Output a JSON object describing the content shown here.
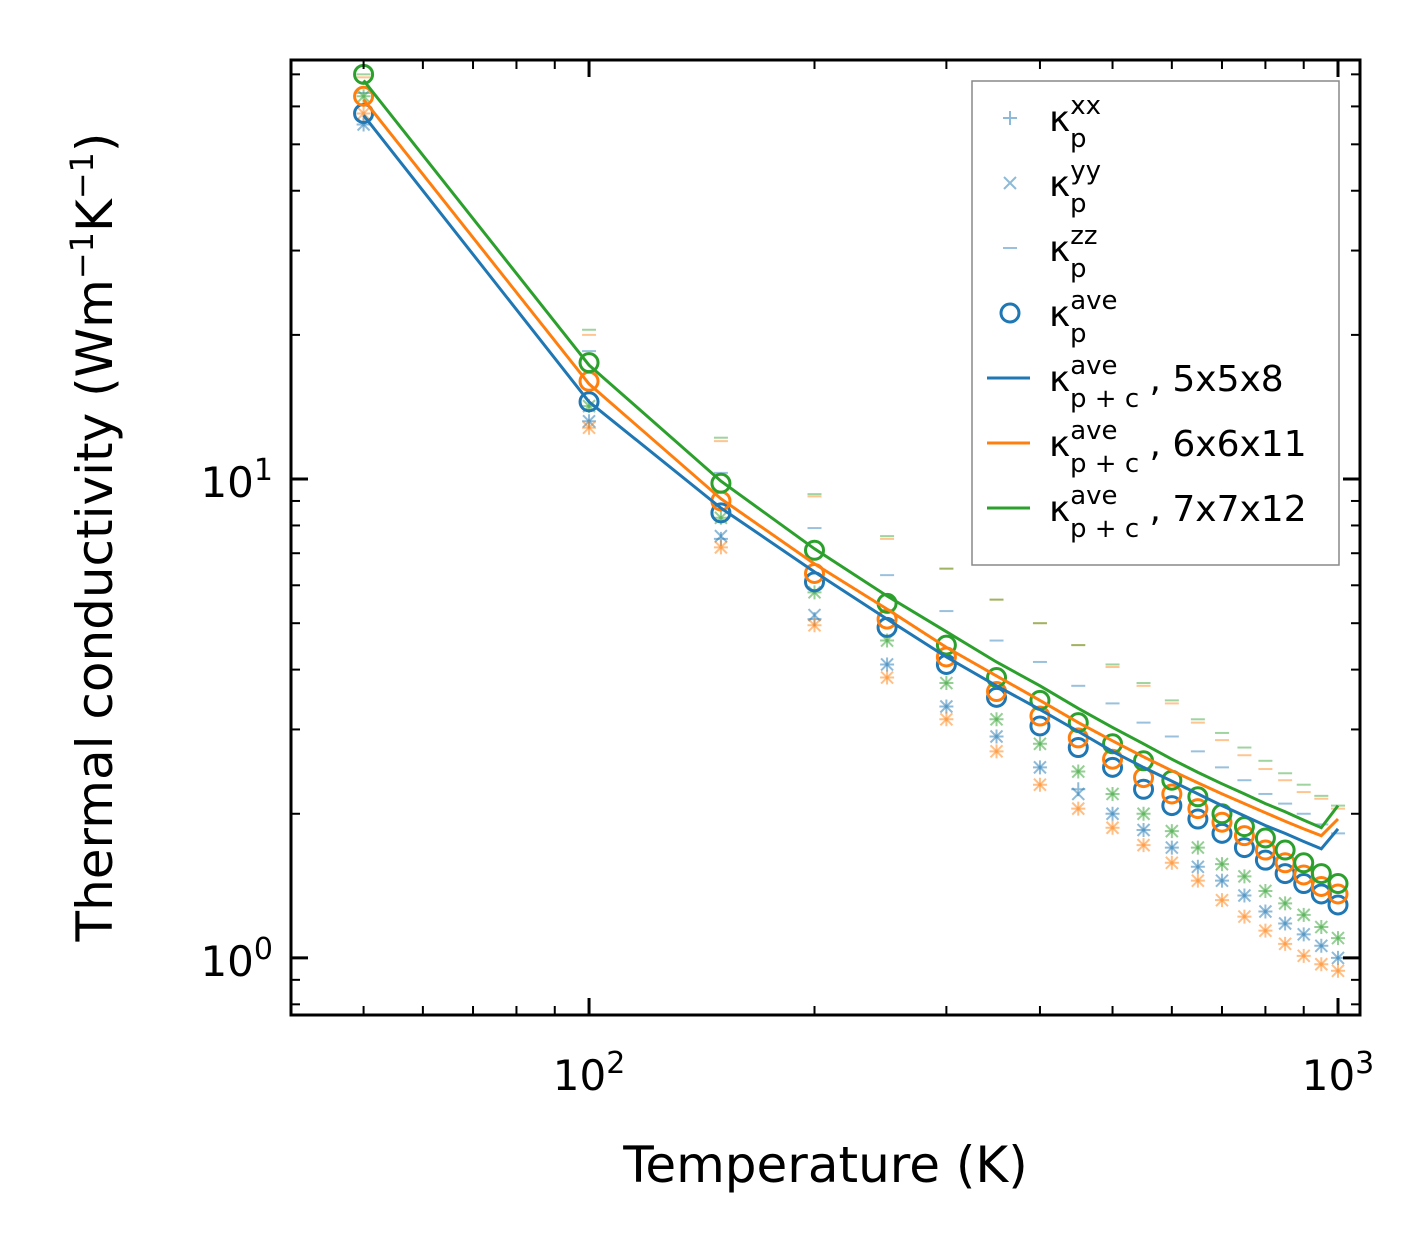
{
  "chart_data": {
    "type": "scatter",
    "xscale": "log",
    "yscale": "log",
    "xlim": [
      40,
      1070
    ],
    "ylim": [
      0.76,
      75
    ],
    "xlabel": "Temperature (K)",
    "ylabel": {
      "main": "Thermal conductivity (Wm",
      "exp1": "−1",
      "mid": "K",
      "exp2": "−1",
      "end": ")"
    },
    "xticks": [
      {
        "value": 100,
        "base": "10",
        "exp": "2"
      },
      {
        "value": 1000,
        "base": "10",
        "exp": "3"
      }
    ],
    "yticks": [
      {
        "value": 1,
        "base": "10",
        "exp": "0"
      },
      {
        "value": 10,
        "base": "10",
        "exp": "1"
      }
    ],
    "temperatures": [
      50,
      100,
      150,
      200,
      250,
      300,
      350,
      400,
      450,
      500,
      550,
      600,
      650,
      700,
      750,
      800,
      850,
      900,
      950,
      1000
    ],
    "colors": {
      "blue": "#1f77b4",
      "orange": "#ff7f0e",
      "green": "#2ca02c"
    },
    "series": [
      {
        "name": "5x5x8",
        "color": "#1f77b4",
        "kxx": [
          55,
          13.2,
          7.5,
          5.1,
          4.1,
          3.35,
          2.9,
          2.5,
          2.25,
          2.0,
          1.85,
          1.7,
          1.55,
          1.45,
          1.35,
          1.25,
          1.18,
          1.12,
          1.06,
          1.0
        ],
        "kyy": [
          55,
          13.2,
          7.6,
          5.2,
          4.1,
          3.35,
          2.9,
          2.5,
          2.2,
          2.0,
          1.85,
          1.7,
          1.55,
          1.45,
          1.35,
          1.25,
          1.18,
          1.12,
          1.06,
          1.0
        ],
        "kzz": [
          64,
          18.5,
          10.3,
          7.9,
          6.3,
          5.3,
          4.6,
          4.15,
          3.7,
          3.4,
          3.1,
          2.9,
          2.7,
          2.5,
          2.35,
          2.2,
          2.1,
          2.0,
          1.9,
          1.82
        ],
        "kave": [
          58,
          14.5,
          8.5,
          6.1,
          4.9,
          4.1,
          3.5,
          3.05,
          2.75,
          2.5,
          2.25,
          2.08,
          1.95,
          1.82,
          1.7,
          1.6,
          1.5,
          1.43,
          1.36,
          1.29
        ],
        "kpc": [
          57.5,
          14.5,
          8.7,
          6.4,
          5.1,
          4.25,
          3.7,
          3.3,
          2.97,
          2.7,
          2.5,
          2.34,
          2.2,
          2.08,
          1.98,
          1.89,
          1.82,
          1.75,
          1.69,
          1.86
        ]
      },
      {
        "name": "6x6x11",
        "color": "#ff7f0e",
        "kxx": [
          58,
          12.8,
          7.2,
          4.95,
          3.85,
          3.15,
          2.7,
          2.3,
          2.05,
          1.87,
          1.72,
          1.58,
          1.45,
          1.32,
          1.22,
          1.14,
          1.07,
          1.01,
          0.97,
          0.94
        ],
        "kyy": [
          58,
          12.8,
          7.2,
          4.95,
          3.85,
          3.15,
          2.7,
          2.3,
          2.05,
          1.87,
          1.72,
          1.58,
          1.45,
          1.32,
          1.22,
          1.14,
          1.07,
          1.01,
          0.97,
          0.94
        ],
        "kzz": [
          69,
          20,
          12.0,
          9.2,
          7.5,
          6.5,
          5.6,
          5.0,
          4.5,
          4.05,
          3.7,
          3.4,
          3.1,
          2.85,
          2.65,
          2.48,
          2.35,
          2.22,
          2.15,
          2.05
        ],
        "kave": [
          63,
          16,
          9.0,
          6.35,
          5.1,
          4.25,
          3.6,
          3.2,
          2.88,
          2.6,
          2.38,
          2.2,
          2.05,
          1.92,
          1.8,
          1.68,
          1.58,
          1.49,
          1.41,
          1.36
        ],
        "kpc": [
          62,
          15.8,
          9.1,
          6.65,
          5.35,
          4.45,
          3.88,
          3.45,
          3.1,
          2.84,
          2.63,
          2.46,
          2.32,
          2.2,
          2.1,
          2.01,
          1.93,
          1.86,
          1.8,
          1.95
        ]
      },
      {
        "name": "7x7x12",
        "color": "#2ca02c",
        "kxx": [
          63,
          14.2,
          8.3,
          5.8,
          4.6,
          3.75,
          3.15,
          2.8,
          2.45,
          2.2,
          2.0,
          1.84,
          1.7,
          1.57,
          1.48,
          1.38,
          1.3,
          1.23,
          1.16,
          1.1
        ],
        "kyy": [
          63,
          14.2,
          8.3,
          5.8,
          4.6,
          3.75,
          3.15,
          2.8,
          2.45,
          2.2,
          2.0,
          1.84,
          1.7,
          1.57,
          1.48,
          1.38,
          1.3,
          1.23,
          1.16,
          1.1
        ],
        "kzz": [
          70,
          20.5,
          12.2,
          9.3,
          7.6,
          6.5,
          5.6,
          5.0,
          4.5,
          4.1,
          3.75,
          3.45,
          3.15,
          2.95,
          2.75,
          2.58,
          2.43,
          2.3,
          2.18,
          2.08
        ],
        "kave": [
          70,
          17.5,
          9.8,
          7.1,
          5.5,
          4.5,
          3.85,
          3.45,
          3.1,
          2.8,
          2.58,
          2.35,
          2.17,
          2.0,
          1.88,
          1.78,
          1.68,
          1.58,
          1.5,
          1.43
        ],
        "kpc": [
          68,
          17.3,
          9.9,
          7.15,
          5.7,
          4.8,
          4.15,
          3.7,
          3.32,
          3.03,
          2.8,
          2.6,
          2.44,
          2.31,
          2.2,
          2.1,
          2.02,
          1.94,
          1.87,
          2.08
        ]
      }
    ],
    "legend": {
      "placement": "top-right",
      "entries": [
        {
          "marker": "plus",
          "label": "κ",
          "sub": "p",
          "sup": "xx",
          "suffix": ""
        },
        {
          "marker": "cross",
          "label": "κ",
          "sub": "p",
          "sup": "yy",
          "suffix": ""
        },
        {
          "marker": "dash",
          "label": "κ",
          "sub": "p",
          "sup": "zz",
          "suffix": ""
        },
        {
          "marker": "circle",
          "label": "κ",
          "sub": "p",
          "sup": "ave",
          "suffix": ""
        },
        {
          "marker": "line",
          "color": "#1f77b4",
          "label": "κ",
          "sub": "p + c",
          "sup": "ave",
          "suffix": ", 5x5x8"
        },
        {
          "marker": "line",
          "color": "#ff7f0e",
          "label": "κ",
          "sub": "p + c",
          "sup": "ave",
          "suffix": ", 6x6x11"
        },
        {
          "marker": "line",
          "color": "#2ca02c",
          "label": "κ",
          "sub": "p + c",
          "sup": "ave",
          "suffix": ", 7x7x12"
        }
      ]
    }
  }
}
